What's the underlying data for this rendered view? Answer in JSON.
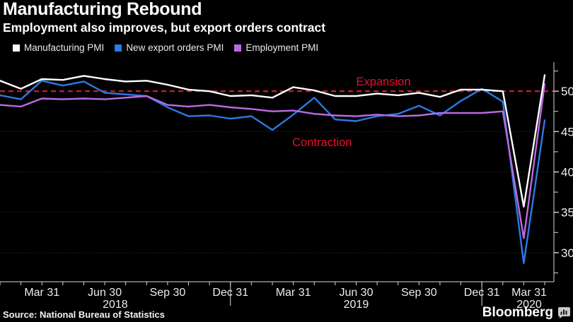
{
  "chart_data": {
    "type": "line",
    "title": "Manufacturing Rebound",
    "subtitle": "Employment also improves, but export orders contract",
    "source": "Source: National Bureau of Statistics",
    "brand": "Bloomberg",
    "background": "#000000",
    "axis_color": "#d9d9d9",
    "grid": {
      "color": "#3b3b3b",
      "style": "dotted",
      "levels": [
        30,
        35,
        40,
        45
      ]
    },
    "x_months": [
      "Jan 2018",
      "Feb 2018",
      "Mar 2018",
      "Apr 2018",
      "May 2018",
      "Jun 2018",
      "Jul 2018",
      "Aug 2018",
      "Sep 2018",
      "Oct 2018",
      "Nov 2018",
      "Dec 2018",
      "Jan 2019",
      "Feb 2019",
      "Mar 2019",
      "Apr 2019",
      "May 2019",
      "Jun 2019",
      "Jul 2019",
      "Aug 2019",
      "Sep 2019",
      "Oct 2019",
      "Nov 2019",
      "Dec 2019",
      "Jan 2020",
      "Feb 2020",
      "Mar 2020"
    ],
    "series": [
      {
        "name": "Manufacturing PMI",
        "color": "#ffffff",
        "values": [
          51.3,
          50.3,
          51.5,
          51.4,
          51.9,
          51.5,
          51.2,
          51.3,
          50.8,
          50.2,
          50.0,
          49.4,
          49.5,
          49.2,
          50.5,
          50.1,
          49.4,
          49.4,
          49.7,
          49.5,
          49.8,
          49.3,
          50.2,
          50.2,
          50.0,
          35.7,
          52.0
        ]
      },
      {
        "name": "New export orders PMI",
        "color": "#2b7ae6",
        "values": [
          49.5,
          49.0,
          51.3,
          50.7,
          51.2,
          49.8,
          49.6,
          49.4,
          48.0,
          46.9,
          47.0,
          46.6,
          46.9,
          45.2,
          47.1,
          49.2,
          46.5,
          46.3,
          46.9,
          47.2,
          48.2,
          47.0,
          48.8,
          50.3,
          48.7,
          28.7,
          46.4
        ]
      },
      {
        "name": "Employment PMI",
        "color": "#bc6ae3",
        "values": [
          48.3,
          48.1,
          49.1,
          49.0,
          49.1,
          49.0,
          49.2,
          49.4,
          48.3,
          48.1,
          48.3,
          48.0,
          47.8,
          47.5,
          47.6,
          47.2,
          47.0,
          46.9,
          47.1,
          46.9,
          47.0,
          47.3,
          47.3,
          47.3,
          47.5,
          31.8,
          50.9
        ]
      }
    ],
    "y_axis": {
      "ticks": [
        30,
        35,
        40,
        45,
        50
      ],
      "minor_ticks": [
        27.5,
        32.5,
        37.5,
        42.5,
        47.5,
        52.5
      ],
      "ylim": [
        26.4,
        53.6
      ],
      "side": "right"
    },
    "x_axis": {
      "n_months": 27,
      "tick_labels": [
        {
          "m": 2,
          "label": "Mar 31"
        },
        {
          "m": 5,
          "label": "Jun 30"
        },
        {
          "m": 8,
          "label": "Sep 30"
        },
        {
          "m": 11,
          "label": "Dec 31"
        },
        {
          "m": 14,
          "label": "Mar 31"
        },
        {
          "m": 17,
          "label": "Jun 30"
        },
        {
          "m": 20,
          "label": "Sep 30"
        },
        {
          "m": 23,
          "label": "Dec 31"
        },
        {
          "m": 26,
          "label": "Mar 31"
        }
      ],
      "year_labels": [
        {
          "m": 5.5,
          "label": "2018"
        },
        {
          "m": 17,
          "label": "2019"
        },
        {
          "m": 26,
          "label": "2020"
        }
      ],
      "year_dividers": [
        11,
        23
      ]
    },
    "reference_line": {
      "value": 50,
      "color": "#c41f30",
      "style": "dashed"
    },
    "annotation_color": "#ea0e2e",
    "annotations": [
      {
        "text": "Expansion",
        "x_month": 17.0,
        "y_value": 50.7
      },
      {
        "text": "Contraction",
        "x_month": 13.95,
        "y_value": 43.2
      }
    ]
  }
}
